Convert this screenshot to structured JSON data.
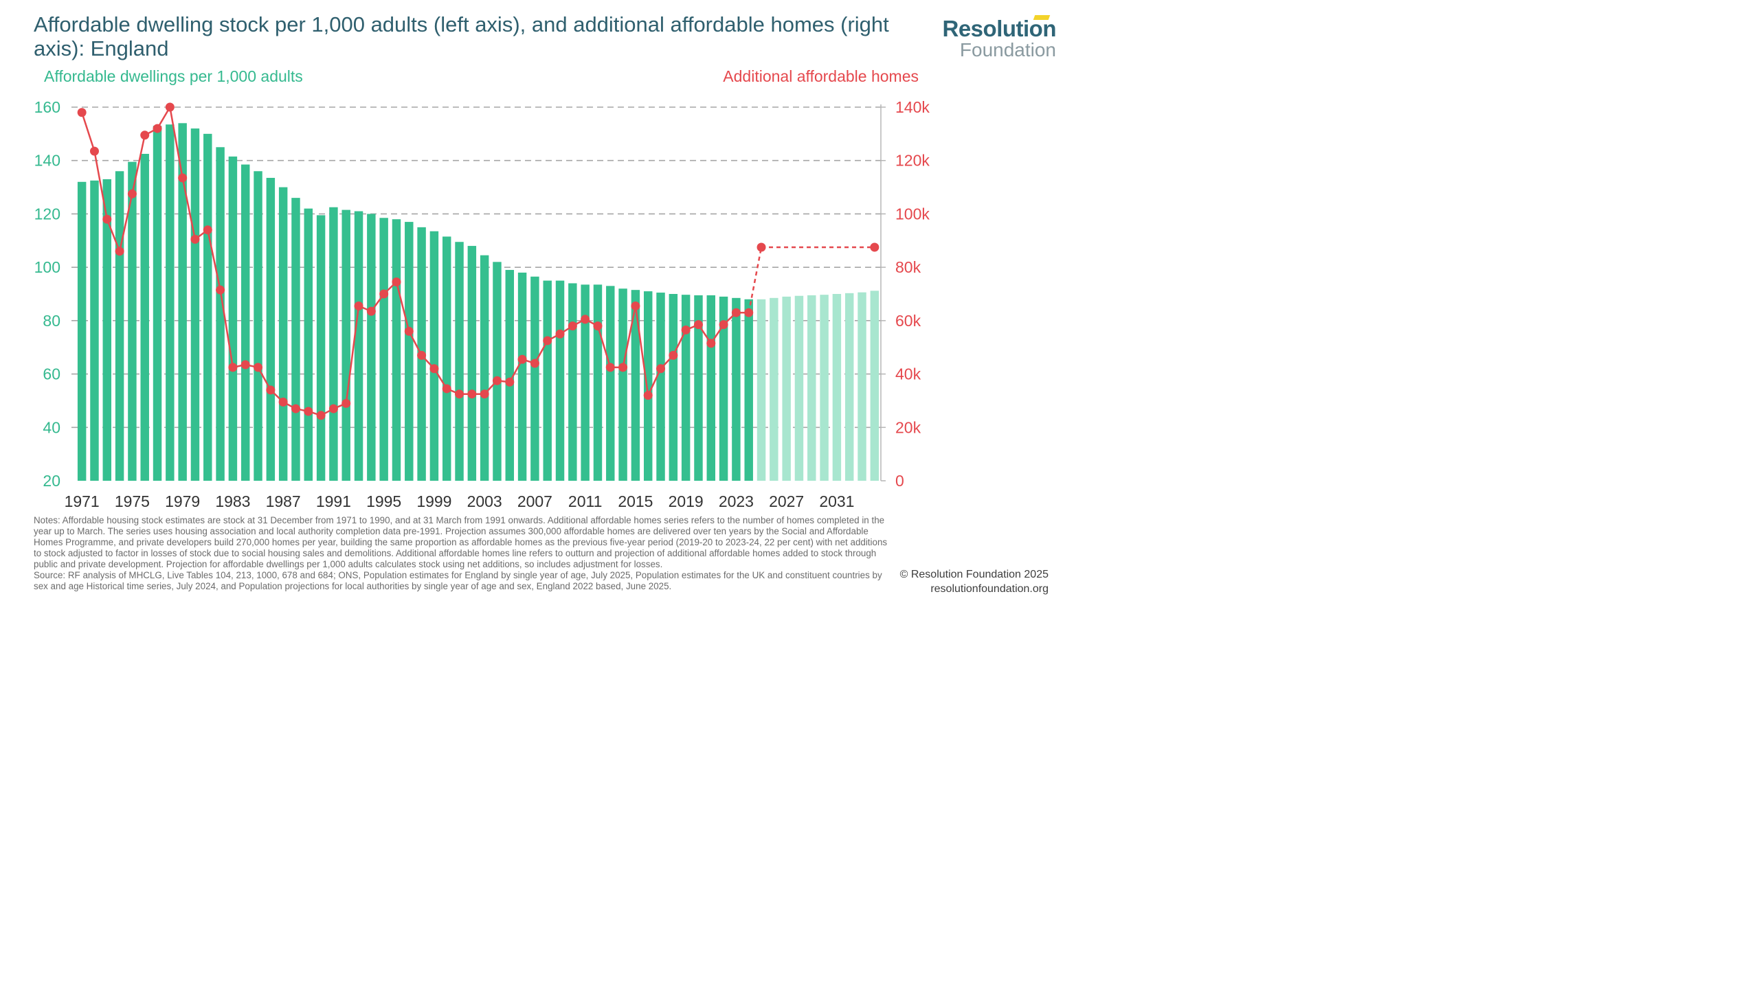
{
  "title": "Affordable dwelling stock per 1,000 adults (left axis), and additional affordable homes (right axis): England",
  "logo": {
    "line1": "Resolution",
    "line2": "Foundation"
  },
  "notes": "Notes: Affordable housing stock estimates are stock at 31 December from 1971 to 1990, and at 31 March from 1991 onwards. Additional affordable homes series refers to the number of homes completed in the year up to March. The series uses housing association and local authority completion data pre-1991. Projection assumes 300,000 affordable homes are delivered over ten years by the Social and Affordable Homes Programme, and private developers build 270,000 homes per year, building the same proportion as affordable homes as the previous five-year period (2019-20 to 2023-24, 22 per cent) with net additions to stock adjusted to factor in losses of stock due to social housing sales and demolitions. Additional affordable homes line refers to outturn and projection of additional affordable homes added to stock through public and private development. Projection for affordable dwellings per 1,000 adults calculates stock using net additions, so includes adjustment for losses.",
  "source": "Source: RF analysis of MHCLG, Live Tables 104, 213, 1000, 678 and 684; ONS, Population estimates for England by single year of age, July 2025, Population estimates for the UK and constituent countries by sex and age Historical time series, July 2024, and Population projections for local authorities by single year of age and sex, England 2022 based, June 2025.",
  "copyright": "© Resolution Foundation 2025",
  "website": "resolutionfoundation.org",
  "colors": {
    "bar": "#35bf8f",
    "bar_projection": "#a8e6cf",
    "line": "#e5484d",
    "left_axis": "#35b98f",
    "right_axis": "#e5484d",
    "grid": "#a6a6a6"
  },
  "chart_data": {
    "type": "bar",
    "x_tick_labels": [
      "1971",
      "1975",
      "1979",
      "1983",
      "1987",
      "1991",
      "1995",
      "1999",
      "2003",
      "2007",
      "2011",
      "2015",
      "2019",
      "2023",
      "2027",
      "2031"
    ],
    "years": [
      1971,
      1972,
      1973,
      1974,
      1975,
      1976,
      1977,
      1978,
      1979,
      1980,
      1981,
      1982,
      1983,
      1984,
      1985,
      1986,
      1987,
      1988,
      1989,
      1990,
      1991,
      1992,
      1993,
      1994,
      1995,
      1996,
      1997,
      1998,
      1999,
      2000,
      2001,
      2002,
      2003,
      2004,
      2005,
      2006,
      2007,
      2008,
      2009,
      2010,
      2011,
      2012,
      2013,
      2014,
      2015,
      2016,
      2017,
      2018,
      2019,
      2020,
      2021,
      2022,
      2023,
      2024,
      2025,
      2026,
      2027,
      2028,
      2029,
      2030,
      2031,
      2032,
      2033,
      2034
    ],
    "grid": true,
    "left_axis": {
      "title": "Affordable dwellings per 1,000 adults",
      "ylim": [
        20,
        160
      ],
      "ticks": [
        "20",
        "40",
        "60",
        "80",
        "100",
        "120",
        "140",
        "160"
      ],
      "tick_values": [
        20,
        40,
        60,
        80,
        100,
        120,
        140,
        160
      ]
    },
    "right_axis": {
      "title": "Additional affordable homes",
      "ylim": [
        0,
        140000
      ],
      "ticks": [
        "0",
        "20k",
        "40k",
        "60k",
        "80k",
        "100k",
        "120k",
        "140k"
      ],
      "tick_values": [
        0,
        20000,
        40000,
        60000,
        80000,
        100000,
        120000,
        140000
      ]
    },
    "series": [
      {
        "type": "bar",
        "axis": "left",
        "values": [
          132,
          132.5,
          133,
          136,
          139.5,
          142.5,
          153,
          153.5,
          154,
          152,
          150,
          145,
          141.5,
          138.5,
          136,
          133.5,
          130,
          126,
          122,
          119.5,
          122.5,
          121.5,
          121,
          120,
          118.5,
          118,
          117,
          115,
          113.5,
          111.5,
          109.5,
          108,
          104.5,
          102,
          99,
          98,
          96.5,
          95,
          95,
          94,
          93.5,
          93.5,
          93,
          92,
          91.5,
          91,
          90.5,
          90,
          89.7,
          89.5,
          89.5,
          89,
          88.5,
          88,
          88,
          88.5,
          89,
          89.3,
          89.5,
          89.7,
          90,
          90.3,
          90.6,
          91.2
        ],
        "projection_start_year": 2025
      },
      {
        "type": "line",
        "axis": "right",
        "values": [
          138000,
          123500,
          98000,
          86000,
          107500,
          129500,
          132000,
          140000,
          113500,
          90500,
          94000,
          71500,
          42500,
          43500,
          42500,
          34000,
          29500,
          27000,
          26000,
          24500,
          27000,
          29000,
          65500,
          63500,
          70000,
          74500,
          56000,
          47000,
          42000,
          34500,
          32500,
          32500,
          32500,
          37500,
          37000,
          45500,
          44000,
          52500,
          55000,
          58000,
          60500,
          58000,
          42500,
          42500,
          65500,
          32000,
          42000,
          47000,
          56500,
          58500,
          51500,
          58500,
          63000,
          63000,
          87500,
          null,
          null,
          null,
          null,
          null,
          null,
          null,
          null,
          87500
        ],
        "dashed_from_year": 2024
      }
    ]
  }
}
